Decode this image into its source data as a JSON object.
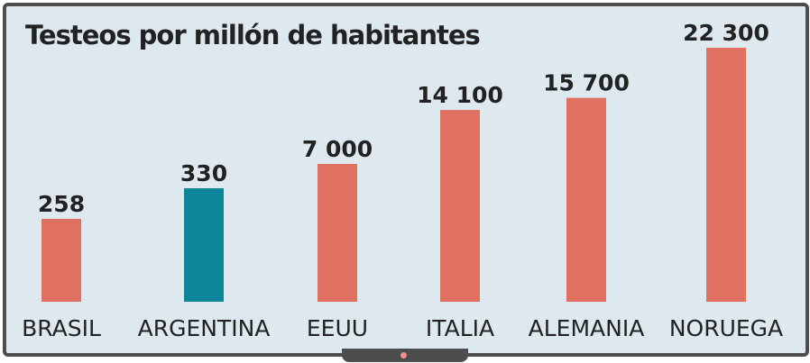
{
  "chart_data": {
    "type": "bar",
    "title": "Testeos por millón de habitantes",
    "categories": [
      "BRASIL",
      "ARGENTINA",
      "EEUU",
      "ITALIA",
      "ALEMANIA",
      "NORUEGA"
    ],
    "values": [
      258,
      330,
      7000,
      14100,
      15700,
      22300
    ],
    "value_labels": [
      "258",
      "330",
      "7 000",
      "14 100",
      "15 700",
      "22 300"
    ],
    "highlight_category": "ARGENTINA",
    "xlabel": "",
    "ylabel": "",
    "grid": false,
    "legend": "none",
    "note": "axis is not linear; bars are illustrative of rank"
  },
  "colors": {
    "bar": "#e07060",
    "highlight": "#0e8699",
    "screen": "#dde9ee",
    "frame": "#4d4d4d",
    "text": "#222222",
    "led": "#f08f8f"
  }
}
